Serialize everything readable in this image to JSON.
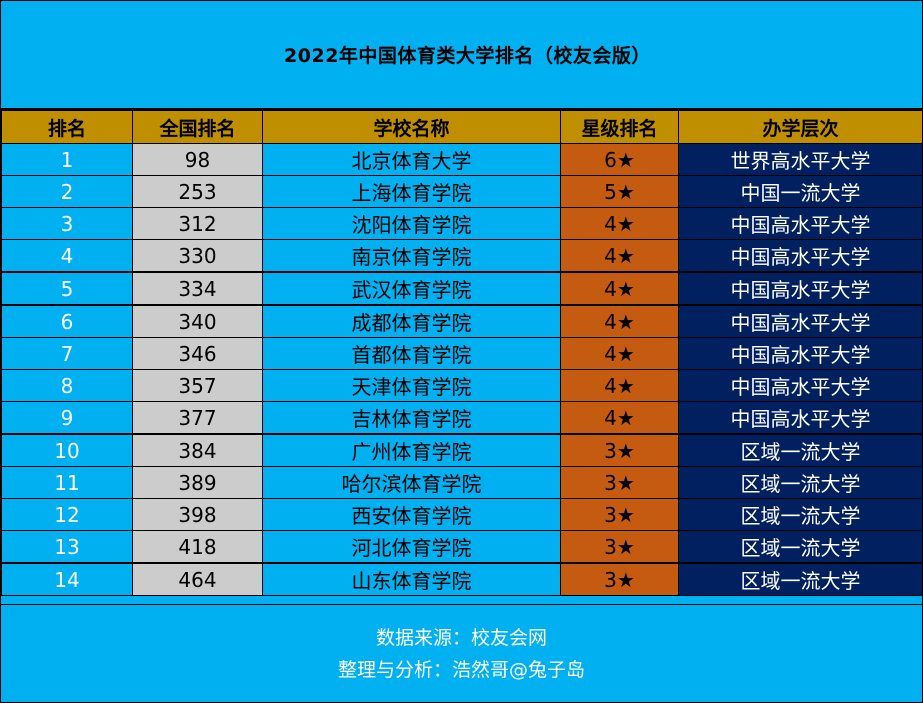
{
  "title": "2022年中国体育类大学排名（校友会版）",
  "colors": {
    "background": "#00b0f0",
    "header": "#bf8f00",
    "national_rank_cell": "#cccccc",
    "star_cell": "#c55a11",
    "level_cell": "#002060"
  },
  "table": {
    "headers": [
      "排名",
      "全国排名",
      "学校名称",
      "星级排名",
      "办学层次"
    ],
    "rows": [
      {
        "rank": "1",
        "national_rank": "98",
        "school": "北京体育大学",
        "star": "6★",
        "level": "世界高水平大学"
      },
      {
        "rank": "2",
        "national_rank": "253",
        "school": "上海体育学院",
        "star": "5★",
        "level": "中国一流大学"
      },
      {
        "rank": "3",
        "national_rank": "312",
        "school": "沈阳体育学院",
        "star": "4★",
        "level": "中国高水平大学"
      },
      {
        "rank": "4",
        "national_rank": "330",
        "school": "南京体育学院",
        "star": "4★",
        "level": "中国高水平大学"
      },
      {
        "rank": "5",
        "national_rank": "334",
        "school": "武汉体育学院",
        "star": "4★",
        "level": "中国高水平大学"
      },
      {
        "rank": "6",
        "national_rank": "340",
        "school": "成都体育学院",
        "star": "4★",
        "level": "中国高水平大学"
      },
      {
        "rank": "7",
        "national_rank": "346",
        "school": "首都体育学院",
        "star": "4★",
        "level": "中国高水平大学"
      },
      {
        "rank": "8",
        "national_rank": "357",
        "school": "天津体育学院",
        "star": "4★",
        "level": "中国高水平大学"
      },
      {
        "rank": "9",
        "national_rank": "377",
        "school": "吉林体育学院",
        "star": "4★",
        "level": "中国高水平大学"
      },
      {
        "rank": "10",
        "national_rank": "384",
        "school": "广州体育学院",
        "star": "3★",
        "level": "区域一流大学"
      },
      {
        "rank": "11",
        "national_rank": "389",
        "school": "哈尔滨体育学院",
        "star": "3★",
        "level": "区域一流大学"
      },
      {
        "rank": "12",
        "national_rank": "398",
        "school": "西安体育学院",
        "star": "3★",
        "level": "区域一流大学"
      },
      {
        "rank": "13",
        "national_rank": "418",
        "school": "河北体育学院",
        "star": "3★",
        "level": "区域一流大学"
      },
      {
        "rank": "14",
        "national_rank": "464",
        "school": "山东体育学院",
        "star": "3★",
        "level": "区域一流大学"
      }
    ]
  },
  "footer": {
    "source": "数据来源：校友会网",
    "credit": "整理与分析：浩然哥@兔子岛"
  }
}
